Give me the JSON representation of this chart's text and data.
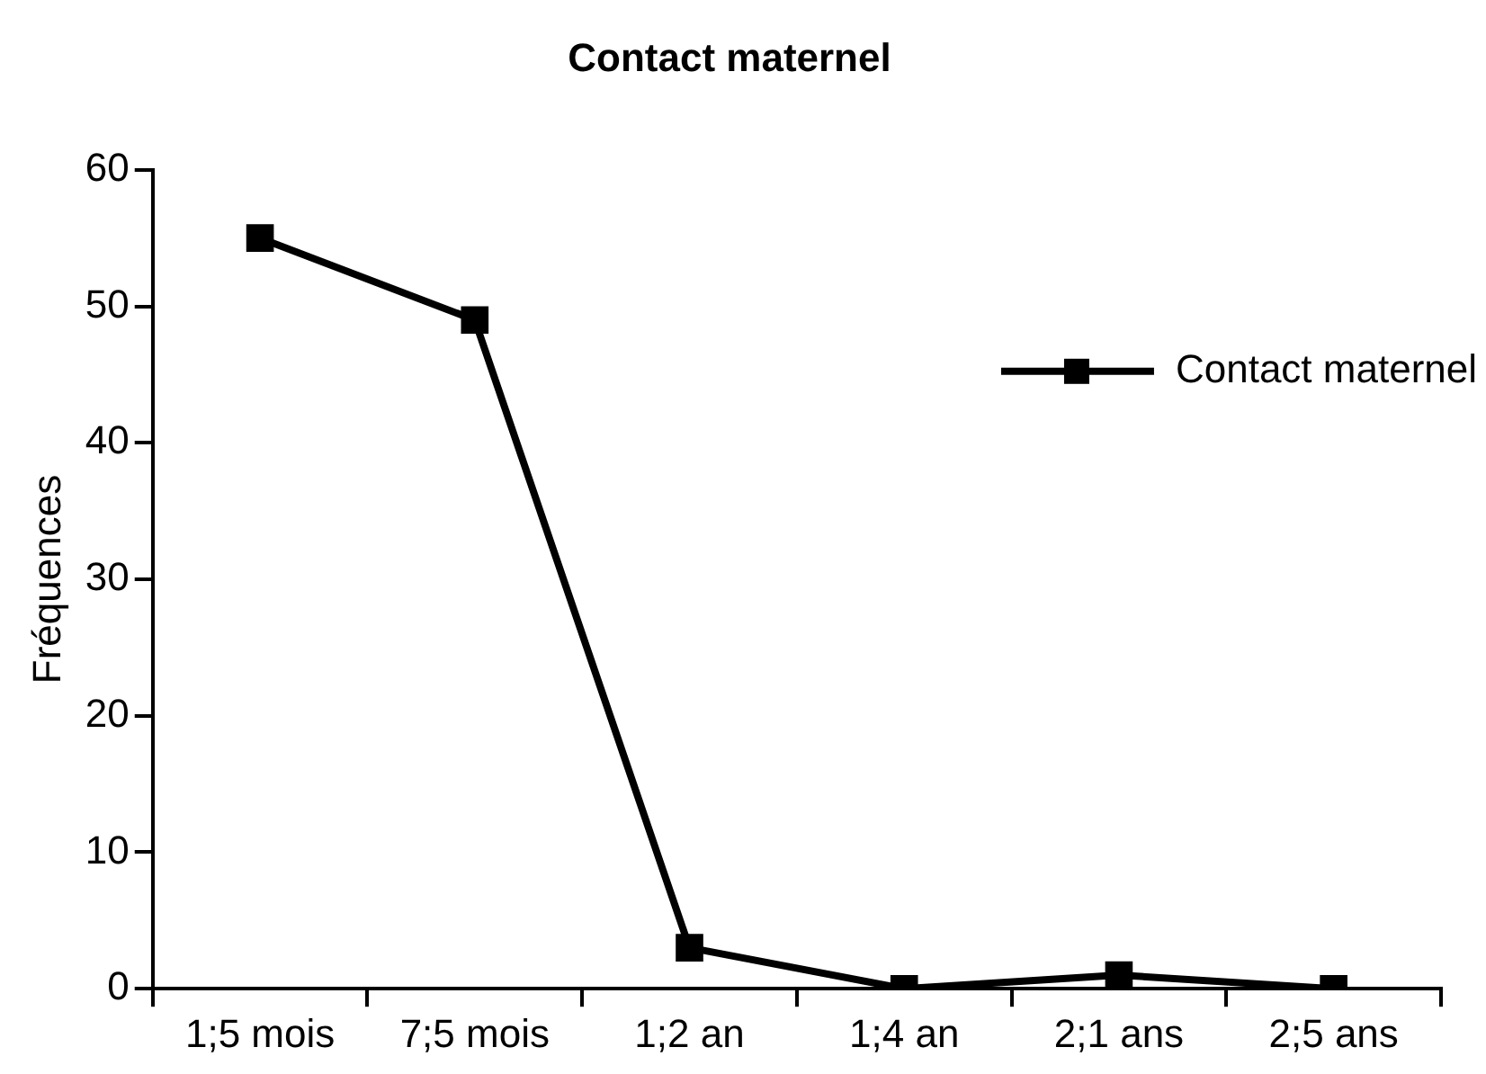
{
  "chart_data": {
    "type": "line",
    "title": "Contact maternel",
    "ylabel": "Fréquences",
    "categories": [
      "1;5 mois",
      "7;5 mois",
      "1;2 an",
      "1;4 an",
      "2;1 ans",
      "2;5 ans"
    ],
    "series": [
      {
        "name": "Contact maternel",
        "color": "#000000",
        "values": [
          55,
          49,
          3,
          0,
          1,
          0
        ]
      }
    ],
    "ylim": [
      0,
      60
    ],
    "yticks": [
      0,
      10,
      20,
      30,
      40,
      50,
      60
    ],
    "grid": false,
    "legend": "top right",
    "marker": "square",
    "line_style": "solid"
  }
}
